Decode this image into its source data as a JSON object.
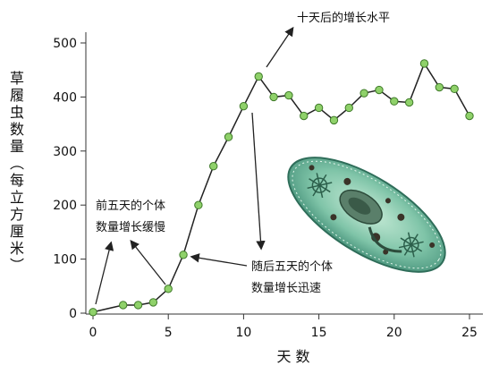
{
  "chart_data": {
    "type": "line",
    "title": "",
    "xlabel": "天 数",
    "ylabel": "草履虫数量（每立方厘米）",
    "xlim": [
      0,
      25
    ],
    "ylim": [
      0,
      500
    ],
    "x_ticks": [
      0,
      5,
      10,
      15,
      20,
      25
    ],
    "y_ticks": [
      0,
      100,
      200,
      300,
      400,
      500
    ],
    "grid": false,
    "series": [
      {
        "x": [
          0,
          2,
          3,
          4,
          5,
          6,
          7,
          8,
          9,
          10,
          11,
          12,
          13,
          14,
          15,
          16,
          17,
          18,
          19,
          20,
          21,
          22,
          23,
          24,
          25
        ],
        "values": [
          2,
          15,
          15,
          20,
          45,
          108,
          200,
          272,
          326,
          383,
          438,
          400,
          403,
          365,
          380,
          357,
          380,
          407,
          413,
          392,
          390,
          462,
          418,
          415,
          365
        ]
      }
    ],
    "annotations": [
      {
        "text": "十天后的增长水平"
      },
      {
        "lines": [
          "前五天的个体",
          "数量增长缓慢"
        ]
      },
      {
        "lines": [
          "随后五天的个体",
          "数量增长迅速"
        ]
      }
    ]
  },
  "styles": {
    "marker_fill": "#8fd16a",
    "marker_stroke": "#3f7a29",
    "line_color": "#222222",
    "axis_color": "#333333"
  },
  "illustration": {
    "icon": "paramecium-illustration"
  }
}
